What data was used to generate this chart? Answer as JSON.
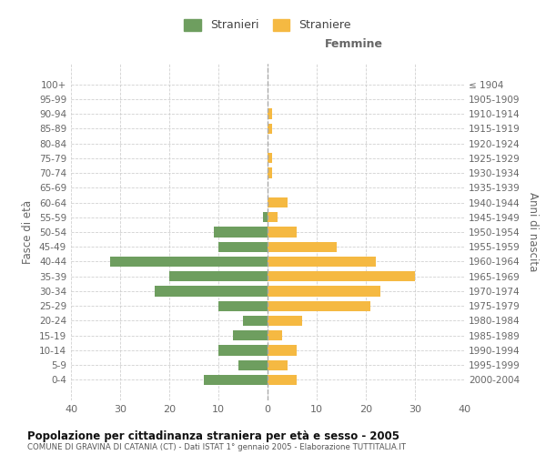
{
  "age_groups": [
    "0-4",
    "5-9",
    "10-14",
    "15-19",
    "20-24",
    "25-29",
    "30-34",
    "35-39",
    "40-44",
    "45-49",
    "50-54",
    "55-59",
    "60-64",
    "65-69",
    "70-74",
    "75-79",
    "80-84",
    "85-89",
    "90-94",
    "95-99",
    "100+"
  ],
  "birth_years": [
    "2000-2004",
    "1995-1999",
    "1990-1994",
    "1985-1989",
    "1980-1984",
    "1975-1979",
    "1970-1974",
    "1965-1969",
    "1960-1964",
    "1955-1959",
    "1950-1954",
    "1945-1949",
    "1940-1944",
    "1935-1939",
    "1930-1934",
    "1925-1929",
    "1920-1924",
    "1915-1919",
    "1910-1914",
    "1905-1909",
    "≤ 1904"
  ],
  "males": [
    13,
    6,
    10,
    7,
    5,
    10,
    23,
    20,
    32,
    10,
    11,
    1,
    0,
    0,
    0,
    0,
    0,
    0,
    0,
    0,
    0
  ],
  "females": [
    6,
    4,
    6,
    3,
    7,
    21,
    23,
    30,
    22,
    14,
    6,
    2,
    4,
    0,
    1,
    1,
    0,
    1,
    1,
    0,
    0
  ],
  "male_color": "#6e9e5f",
  "female_color": "#f5b942",
  "background_color": "#ffffff",
  "grid_color": "#cccccc",
  "title": "Popolazione per cittadinanza straniera per età e sesso - 2005",
  "subtitle": "COMUNE DI GRAVINA DI CATANIA (CT) - Dati ISTAT 1° gennaio 2005 - Elaborazione TUTTITALIA.IT",
  "ylabel_left": "Fasce di età",
  "ylabel_right": "Anni di nascita",
  "xlabel_right": "Femmine",
  "legend_male": "Stranieri",
  "legend_female": "Straniere",
  "xlim": 40
}
